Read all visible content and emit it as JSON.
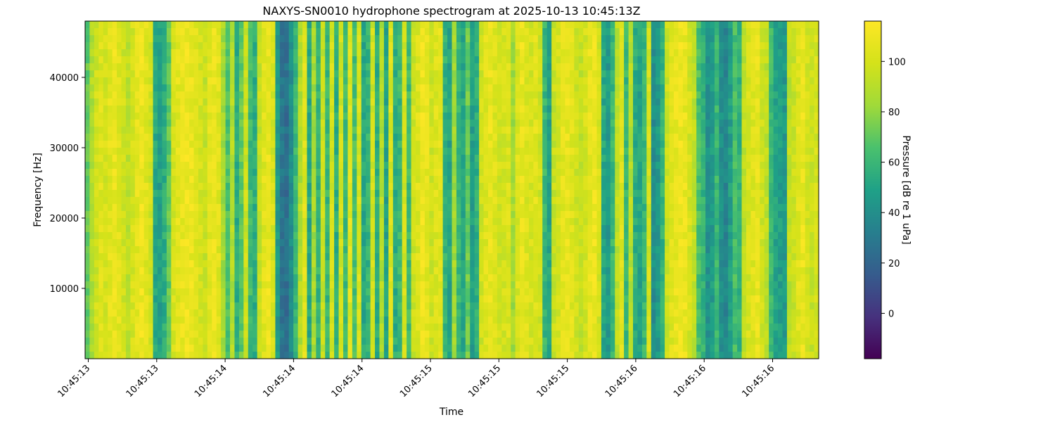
{
  "chart_data": {
    "type": "heatmap",
    "title": "NAXYS-SN0010 hydrophone spectrogram at 2025-10-13 10:45:13Z",
    "xlabel": "Time",
    "ylabel": "Frequency [Hz]",
    "x_tick_labels": [
      "10:45:13",
      "10:45:13",
      "10:45:14",
      "10:45:14",
      "10:45:14",
      "10:45:15",
      "10:45:15",
      "10:45:15",
      "10:45:16",
      "10:45:16",
      "10:45:16"
    ],
    "y_tick_labels": [
      "10000",
      "20000",
      "30000",
      "40000"
    ],
    "y_ticks": [
      10000,
      20000,
      30000,
      40000
    ],
    "ylim": [
      0,
      48000
    ],
    "colormap": "viridis",
    "colorbar": {
      "label": "Pressure [dB re 1 uPa]",
      "range": [
        -18,
        116
      ],
      "ticks": [
        0,
        20,
        40,
        60,
        80,
        100
      ],
      "tick_labels": [
        "0",
        "20",
        "40",
        "60",
        "80",
        "100"
      ]
    },
    "time_profile_db": [
      70,
      88,
      98,
      103,
      100,
      105,
      108,
      104,
      98,
      92,
      100,
      106,
      110,
      104,
      99,
      52,
      48,
      55,
      70,
      100,
      105,
      108,
      110,
      108,
      104,
      100,
      95,
      106,
      108,
      104,
      85,
      65,
      88,
      55,
      70,
      97,
      62,
      55,
      94,
      104,
      108,
      100,
      45,
      28,
      25,
      40,
      60,
      88,
      104,
      52,
      85,
      58,
      95,
      60,
      100,
      55,
      98,
      62,
      104,
      64,
      101,
      52,
      58,
      98,
      55,
      88,
      50,
      102,
      55,
      60,
      100,
      62,
      97,
      103,
      110,
      106,
      98,
      103,
      105,
      58,
      50,
      85,
      60,
      52,
      72,
      48,
      56,
      98,
      104,
      108,
      103,
      98,
      100,
      102,
      85,
      102,
      108,
      103,
      100,
      104,
      98,
      60,
      50,
      95,
      100,
      105,
      108,
      104,
      98,
      94,
      100,
      107,
      109,
      100,
      52,
      45,
      60,
      92,
      104,
      60,
      90,
      55,
      50,
      60,
      100,
      40,
      45,
      58,
      96,
      104,
      108,
      110,
      108,
      100,
      92,
      65,
      58,
      42,
      46,
      60,
      40,
      36,
      48,
      64,
      58,
      92,
      100,
      104,
      108,
      98,
      92,
      62,
      50,
      48,
      45,
      92,
      96,
      104,
      108,
      100,
      95,
      100
    ]
  }
}
